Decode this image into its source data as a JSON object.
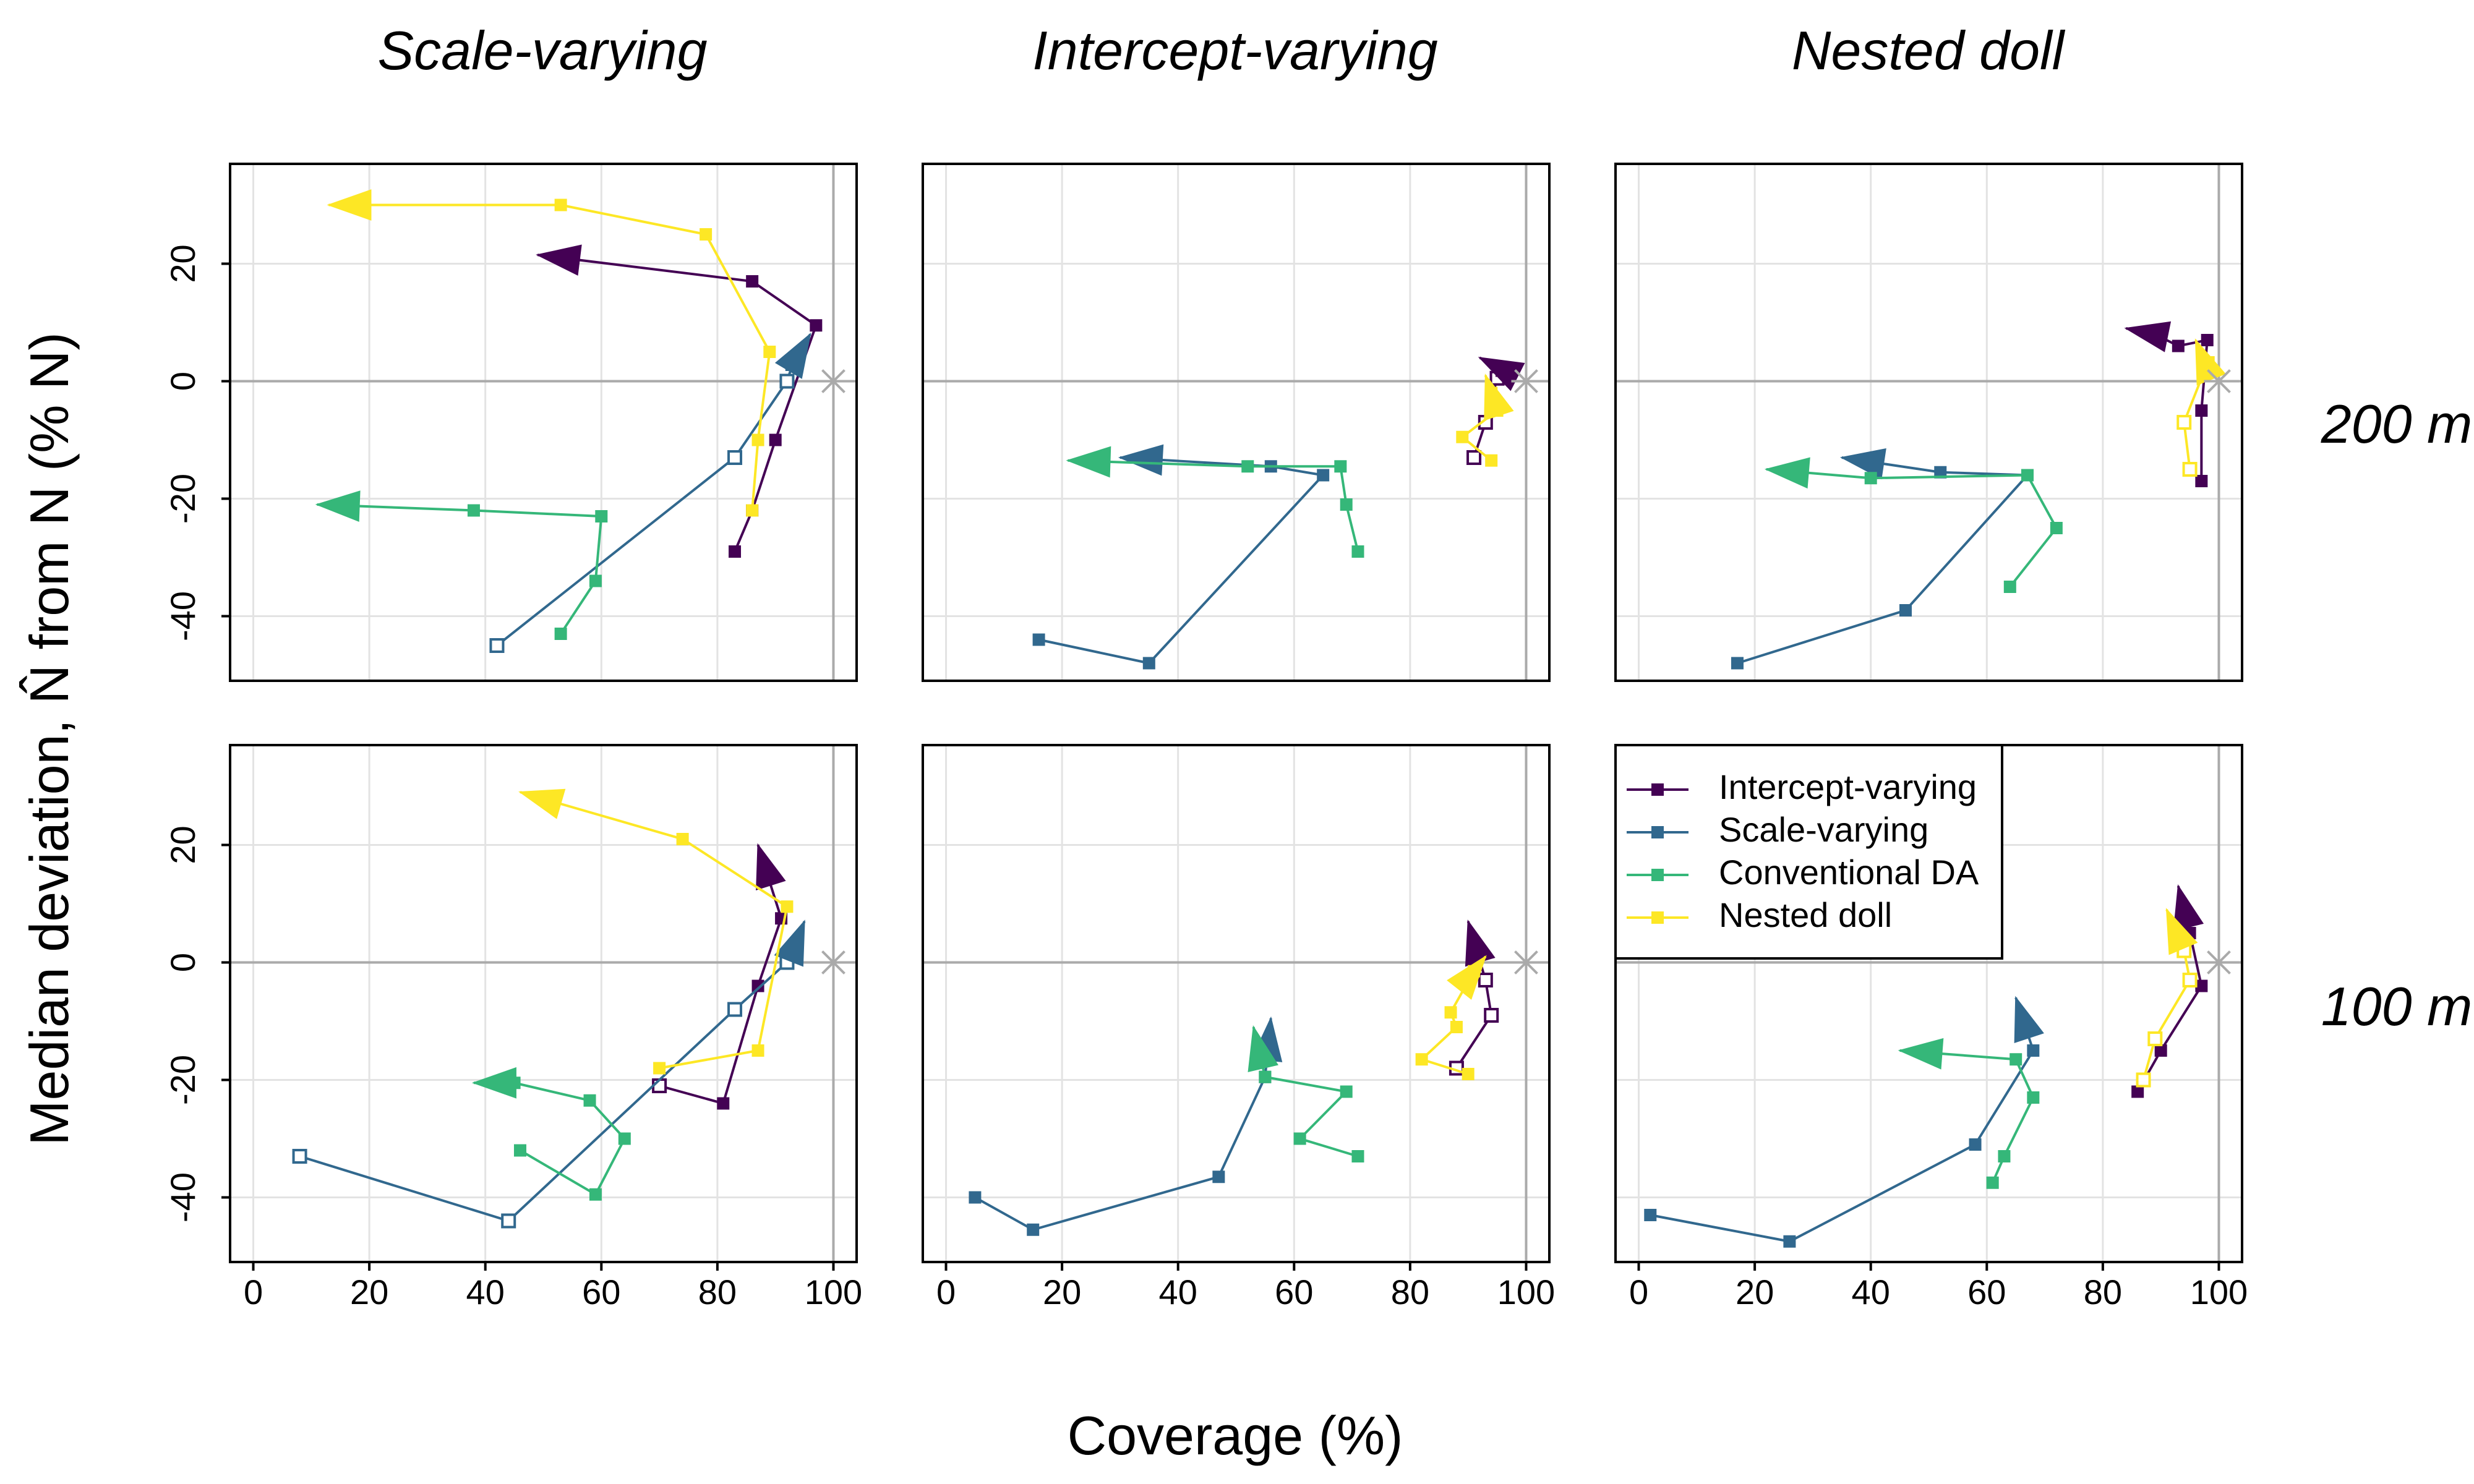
{
  "chart_data": {
    "type": "line",
    "panel_columns": [
      "Scale-varying",
      "Intercept-varying",
      "Nested doll"
    ],
    "panel_rows": [
      "200 m",
      "100 m"
    ],
    "xlabel": "Coverage (%)",
    "ylabel": "Median deviation, N̂ from N (% N)",
    "xlim": [
      -4,
      104
    ],
    "ylim": [
      -51,
      37
    ],
    "x_ticks": [
      0,
      20,
      40,
      60,
      80,
      100
    ],
    "y_ticks": [
      -40,
      -20,
      0,
      20
    ],
    "x_tick_labels": [
      "0",
      "20",
      "40",
      "60",
      "80",
      "100"
    ],
    "y_tick_labels": [
      "-40",
      "-20",
      "0",
      "20"
    ],
    "reference": {
      "x": 100,
      "y": 0,
      "marker": "asterisk",
      "color": "#aaaaaa"
    },
    "grid": true,
    "legend": {
      "position": "top-left of bottom-right panel",
      "entries": [
        {
          "name": "Intercept-varying",
          "color": "#440154"
        },
        {
          "name": "Scale-varying",
          "color": "#31688E"
        },
        {
          "name": "Conventional DA",
          "color": "#35B779"
        },
        {
          "name": "Nested doll",
          "color": "#FDE725"
        }
      ]
    },
    "panels": [
      {
        "column": "Scale-varying",
        "row": "200 m",
        "series": [
          {
            "name": "Intercept-varying",
            "color": "#440154",
            "x": [
              83,
              86,
              90,
              97,
              86,
              49
            ],
            "y": [
              -29,
              -22,
              -10,
              9.5,
              17,
              21.5
            ],
            "open": [
              false,
              false,
              false,
              false,
              false,
              false
            ]
          },
          {
            "name": "Scale-varying",
            "color": "#31688E",
            "x": [
              42,
              83,
              92,
              93,
              96
            ],
            "y": [
              -45,
              -13,
              0,
              3,
              8
            ],
            "open": [
              true,
              true,
              true,
              true,
              false
            ]
          },
          {
            "name": "Conventional DA",
            "color": "#35B779",
            "x": [
              53,
              59,
              60,
              38,
              11
            ],
            "y": [
              -43,
              -34,
              -23,
              -22,
              -21
            ],
            "open": [
              false,
              false,
              false,
              false,
              false
            ]
          },
          {
            "name": "Nested doll",
            "color": "#FDE725",
            "x": [
              86,
              87,
              89,
              78,
              53,
              13
            ],
            "y": [
              -22,
              -10,
              5,
              25,
              30,
              30
            ],
            "open": [
              false,
              false,
              false,
              false,
              false,
              false
            ]
          }
        ]
      },
      {
        "column": "Intercept-varying",
        "row": "200 m",
        "series": [
          {
            "name": "Intercept-varying",
            "color": "#440154",
            "x": [
              91,
              93,
              95,
              96,
              92
            ],
            "y": [
              -13,
              -7,
              0.5,
              2,
              4
            ],
            "open": [
              true,
              true,
              true,
              true,
              false
            ]
          },
          {
            "name": "Scale-varying",
            "color": "#31688E",
            "x": [
              16,
              35,
              65,
              56,
              30
            ],
            "y": [
              -44,
              -48,
              -16,
              -14.5,
              -13
            ],
            "open": [
              false,
              false,
              false,
              false,
              false
            ]
          },
          {
            "name": "Conventional DA",
            "color": "#35B779",
            "x": [
              71,
              69,
              68,
              52,
              21
            ],
            "y": [
              -29,
              -21,
              -14.5,
              -14.5,
              -13.5
            ],
            "open": [
              false,
              false,
              false,
              false,
              false
            ]
          },
          {
            "name": "Nested doll",
            "color": "#FDE725",
            "x": [
              94,
              89,
              95,
              94,
              93
            ],
            "y": [
              -13.5,
              -9.5,
              -5,
              -2,
              1
            ],
            "open": [
              false,
              false,
              false,
              false,
              false
            ]
          }
        ]
      },
      {
        "column": "Nested doll",
        "row": "200 m",
        "series": [
          {
            "name": "Intercept-varying",
            "color": "#440154",
            "x": [
              97,
              97,
              98,
              93,
              89,
              84
            ],
            "y": [
              -17,
              -5,
              7,
              6,
              8,
              9
            ],
            "open": [
              false,
              false,
              false,
              false,
              false,
              false
            ]
          },
          {
            "name": "Scale-varying",
            "color": "#31688E",
            "x": [
              17,
              46,
              67,
              52,
              35
            ],
            "y": [
              -48,
              -39,
              -16,
              -15.5,
              -13
            ],
            "open": [
              false,
              false,
              false,
              false,
              false
            ]
          },
          {
            "name": "Conventional DA",
            "color": "#35B779",
            "x": [
              64,
              72,
              67,
              40,
              22
            ],
            "y": [
              -35,
              -25,
              -16,
              -16.5,
              -15
            ],
            "open": [
              false,
              false,
              false,
              false,
              false
            ]
          },
          {
            "name": "Nested doll",
            "color": "#FDE725",
            "x": [
              95,
              94,
              98,
              98,
              96
            ],
            "y": [
              -15,
              -7,
              3,
              2,
              7
            ],
            "open": [
              true,
              true,
              true,
              true,
              false
            ]
          }
        ]
      },
      {
        "column": "Scale-varying",
        "row": "100 m",
        "series": [
          {
            "name": "Intercept-varying",
            "color": "#440154",
            "x": [
              70,
              81,
              87,
              91,
              87
            ],
            "y": [
              -21,
              -24,
              -4,
              7.5,
              20
            ],
            "open": [
              true,
              false,
              false,
              false,
              false
            ]
          },
          {
            "name": "Scale-varying",
            "color": "#31688E",
            "x": [
              8,
              44,
              83,
              92,
              93,
              95
            ],
            "y": [
              -33,
              -44,
              -8,
              0,
              2,
              7
            ],
            "open": [
              true,
              true,
              true,
              true,
              true,
              false
            ]
          },
          {
            "name": "Conventional DA",
            "color": "#35B779",
            "x": [
              46,
              59,
              64,
              58,
              45,
              38
            ],
            "y": [
              -32,
              -39.5,
              -30,
              -23.5,
              -20.5,
              -20.5
            ],
            "open": [
              false,
              false,
              false,
              false,
              false,
              false
            ]
          },
          {
            "name": "Nested doll",
            "color": "#FDE725",
            "x": [
              70,
              87,
              92,
              74,
              46
            ],
            "y": [
              -18,
              -15,
              9.5,
              21,
              29
            ],
            "open": [
              false,
              false,
              false,
              false,
              false
            ]
          }
        ]
      },
      {
        "column": "Intercept-varying",
        "row": "100 m",
        "series": [
          {
            "name": "Intercept-varying",
            "color": "#440154",
            "x": [
              88,
              94,
              93,
              90
            ],
            "y": [
              -18,
              -9,
              -3,
              7
            ],
            "open": [
              true,
              true,
              true,
              false
            ]
          },
          {
            "name": "Scale-varying",
            "color": "#31688E",
            "x": [
              5,
              15,
              47,
              55,
              56
            ],
            "y": [
              -40,
              -45.5,
              -36.5,
              -19.5,
              -9.5
            ],
            "open": [
              false,
              false,
              false,
              false,
              false
            ]
          },
          {
            "name": "Conventional DA",
            "color": "#35B779",
            "x": [
              71,
              61,
              69,
              55,
              53
            ],
            "y": [
              -33,
              -30,
              -22,
              -19.5,
              -11
            ],
            "open": [
              false,
              false,
              false,
              false,
              false
            ]
          },
          {
            "name": "Nested doll",
            "color": "#FDE725",
            "x": [
              90,
              82,
              88,
              87,
              91,
              93
            ],
            "y": [
              -19,
              -16.5,
              -11,
              -8.5,
              -1.5,
              1
            ],
            "open": [
              false,
              false,
              false,
              false,
              false,
              false
            ]
          }
        ]
      },
      {
        "column": "Nested doll",
        "row": "100 m",
        "series": [
          {
            "name": "Intercept-varying",
            "color": "#440154",
            "x": [
              86,
              90,
              97,
              95,
              93
            ],
            "y": [
              -22,
              -15,
              -4,
              5,
              13
            ],
            "open": [
              false,
              false,
              false,
              false,
              false
            ]
          },
          {
            "name": "Scale-varying",
            "color": "#31688E",
            "x": [
              2,
              26,
              58,
              68,
              65
            ],
            "y": [
              -43,
              -47.5,
              -31,
              -15,
              -6
            ],
            "open": [
              false,
              false,
              false,
              false,
              false
            ]
          },
          {
            "name": "Conventional DA",
            "color": "#35B779",
            "x": [
              61,
              63,
              68,
              65,
              45
            ],
            "y": [
              -37.5,
              -33,
              -23,
              -16.5,
              -15
            ],
            "open": [
              false,
              false,
              false,
              false,
              false
            ]
          },
          {
            "name": "Nested doll",
            "color": "#FDE725",
            "x": [
              87,
              89,
              95,
              94,
              91
            ],
            "y": [
              -20,
              -13,
              -3,
              2,
              9
            ],
            "open": [
              true,
              true,
              true,
              true,
              false
            ]
          }
        ]
      }
    ]
  }
}
